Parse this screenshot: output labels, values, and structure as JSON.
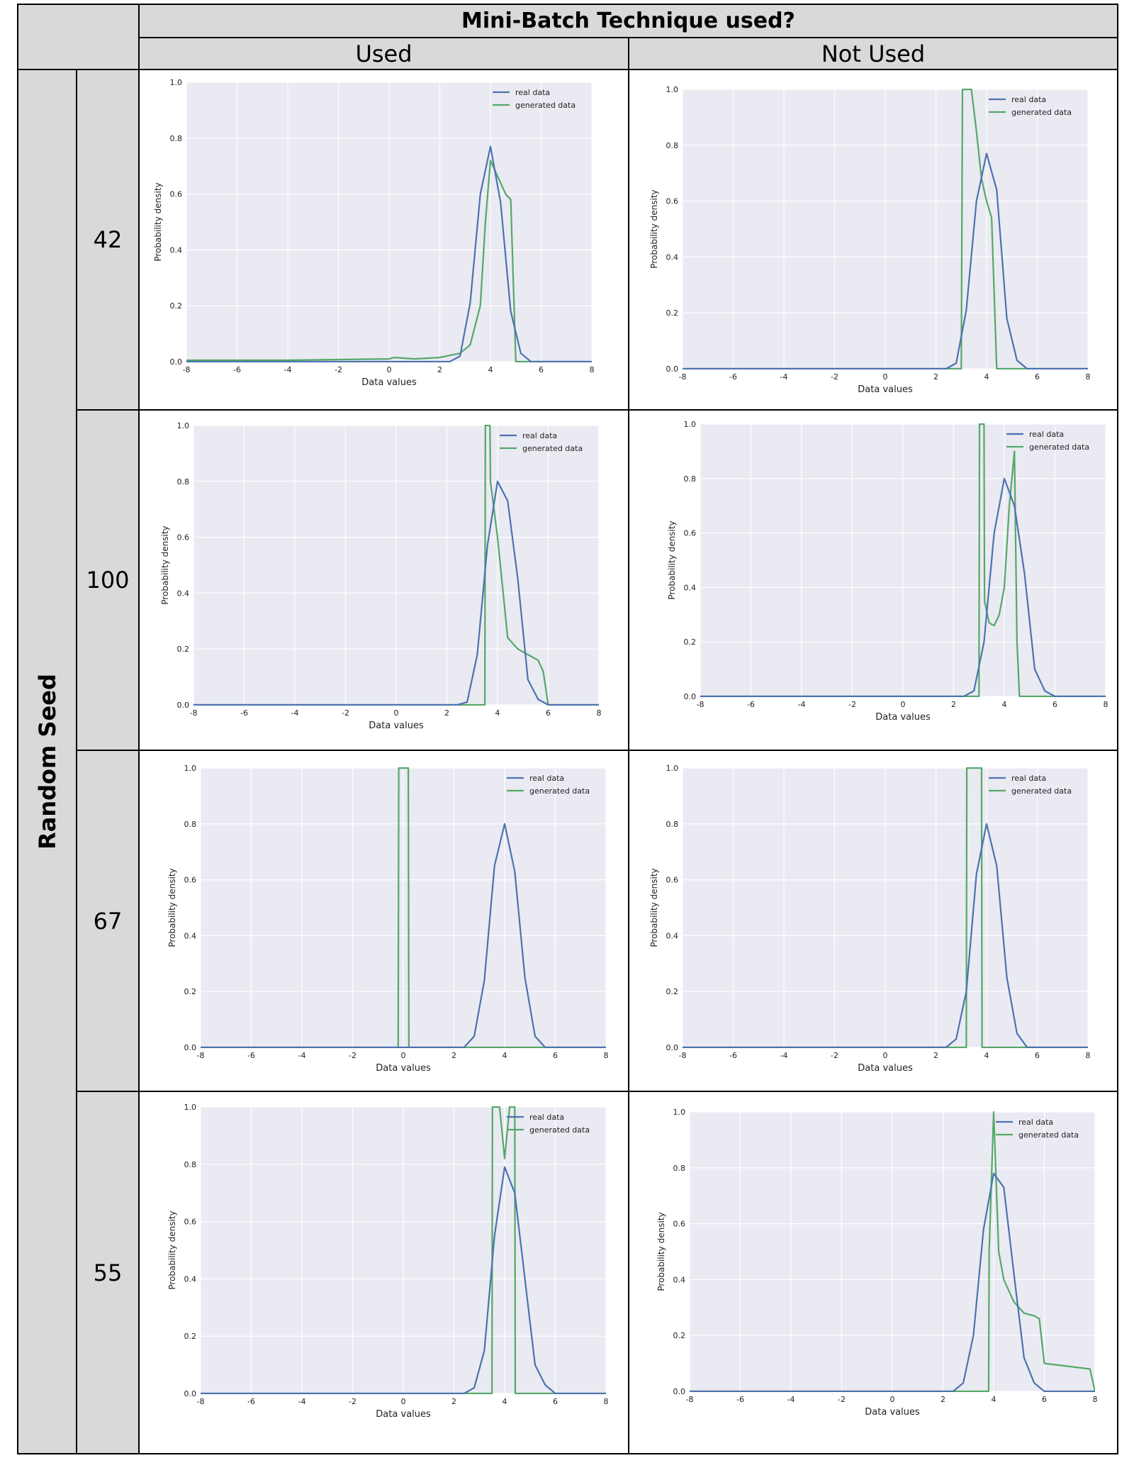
{
  "header": {
    "title": "Mini-Batch Technique used?",
    "col_used": "Used",
    "col_not_used": "Not Used"
  },
  "side_label": "Random Seed",
  "seeds": [
    "42",
    "100",
    "67",
    "55"
  ],
  "colors": {
    "real": "#4c72b0",
    "generated": "#55a868",
    "plot_bg": "#eaeaf2",
    "header_bg": "#d9d9d9"
  },
  "chart_data": [
    {
      "type": "line",
      "seed": "42",
      "minibatch": "Used",
      "xlabel": "Data values",
      "ylabel": "Probability density",
      "xlim": [
        -8,
        8
      ],
      "ylim": [
        0,
        1.0
      ],
      "xticks": [
        -8,
        -6,
        -4,
        -2,
        0,
        2,
        4,
        6,
        8
      ],
      "yticks": [
        0.0,
        0.2,
        0.4,
        0.6,
        0.8,
        1.0
      ],
      "legend": "top-right",
      "series": [
        {
          "name": "real data",
          "x": [
            -8,
            2.4,
            2.8,
            3.2,
            3.6,
            4.0,
            4.4,
            4.8,
            5.2,
            5.6,
            6.0,
            8
          ],
          "y": [
            0,
            0.0,
            0.02,
            0.21,
            0.6,
            0.77,
            0.57,
            0.18,
            0.03,
            0.0,
            0.0,
            0
          ]
        },
        {
          "name": "generated data",
          "x": [
            -8,
            -4,
            0,
            0.2,
            1,
            2,
            2.8,
            3.2,
            3.6,
            3.8,
            4.0,
            4.4,
            4.6,
            4.8,
            5.0,
            8
          ],
          "y": [
            0.005,
            0.005,
            0.01,
            0.015,
            0.01,
            0.015,
            0.03,
            0.06,
            0.2,
            0.5,
            0.72,
            0.64,
            0.6,
            0.58,
            0.0,
            0
          ]
        }
      ]
    },
    {
      "type": "line",
      "seed": "42",
      "minibatch": "Not Used",
      "xlabel": "Data values",
      "ylabel": "Probability density",
      "xlim": [
        -8,
        8
      ],
      "ylim": [
        0,
        1.0
      ],
      "xticks": [
        -8,
        -6,
        -4,
        -2,
        0,
        2,
        4,
        6,
        8
      ],
      "yticks": [
        0.0,
        0.2,
        0.4,
        0.6,
        0.8,
        1.0
      ],
      "legend": "top-right",
      "series": [
        {
          "name": "real data",
          "x": [
            -8,
            2.4,
            2.8,
            3.2,
            3.6,
            4.0,
            4.4,
            4.8,
            5.2,
            5.6,
            6.0,
            8
          ],
          "y": [
            0,
            0.0,
            0.02,
            0.21,
            0.6,
            0.77,
            0.64,
            0.18,
            0.03,
            0.0,
            0.0,
            0
          ]
        },
        {
          "name": "generated data",
          "x": [
            -8,
            3.0,
            3.05,
            3.4,
            3.6,
            3.8,
            4.0,
            4.2,
            4.4,
            8
          ],
          "y": [
            0,
            0,
            1.0,
            1.0,
            0.85,
            0.68,
            0.6,
            0.54,
            0.0,
            0
          ]
        }
      ]
    },
    {
      "type": "line",
      "seed": "100",
      "minibatch": "Used",
      "xlabel": "Data values",
      "ylabel": "Probability density",
      "xlim": [
        -8,
        8
      ],
      "ylim": [
        0,
        1.0
      ],
      "xticks": [
        -8,
        -6,
        -4,
        -2,
        0,
        2,
        4,
        6,
        8
      ],
      "yticks": [
        0.0,
        0.2,
        0.4,
        0.6,
        0.8,
        1.0
      ],
      "legend": "top-right",
      "series": [
        {
          "name": "real data",
          "x": [
            -8,
            2.4,
            2.8,
            3.2,
            3.6,
            4.0,
            4.4,
            4.8,
            5.2,
            5.6,
            6.0,
            8
          ],
          "y": [
            0,
            0.0,
            0.01,
            0.18,
            0.57,
            0.8,
            0.73,
            0.45,
            0.09,
            0.02,
            0.0,
            0
          ]
        },
        {
          "name": "generated data",
          "x": [
            -8,
            3.5,
            3.52,
            3.7,
            3.72,
            4.0,
            4.4,
            4.8,
            5.2,
            5.6,
            5.8,
            6.0,
            8
          ],
          "y": [
            0,
            0,
            1.0,
            1.0,
            0.8,
            0.6,
            0.24,
            0.2,
            0.18,
            0.16,
            0.12,
            0.0,
            0
          ]
        }
      ]
    },
    {
      "type": "line",
      "seed": "100",
      "minibatch": "Not Used",
      "xlabel": "Data values",
      "ylabel": "Probability density",
      "xlim": [
        -8,
        8
      ],
      "ylim": [
        0,
        1.0
      ],
      "xticks": [
        -8,
        -6,
        -4,
        -2,
        0,
        2,
        4,
        6,
        8
      ],
      "yticks": [
        0.0,
        0.2,
        0.4,
        0.6,
        0.8,
        1.0
      ],
      "legend": "top-right",
      "series": [
        {
          "name": "real data",
          "x": [
            -8,
            2.4,
            2.8,
            3.2,
            3.6,
            4.0,
            4.4,
            4.8,
            5.2,
            5.6,
            6.0,
            8
          ],
          "y": [
            0,
            0.0,
            0.02,
            0.2,
            0.6,
            0.8,
            0.7,
            0.45,
            0.1,
            0.02,
            0.0,
            0
          ]
        },
        {
          "name": "generated data",
          "x": [
            -8,
            3.0,
            3.02,
            3.2,
            3.22,
            3.4,
            3.6,
            3.8,
            4.0,
            4.2,
            4.4,
            4.5,
            4.6,
            8
          ],
          "y": [
            0,
            0,
            1.0,
            1.0,
            0.35,
            0.27,
            0.26,
            0.3,
            0.4,
            0.7,
            0.9,
            0.2,
            0.0,
            0
          ]
        }
      ]
    },
    {
      "type": "line",
      "seed": "67",
      "minibatch": "Used",
      "xlabel": "Data values",
      "ylabel": "Probability density",
      "xlim": [
        -8,
        8
      ],
      "ylim": [
        0,
        1.0
      ],
      "xticks": [
        -8,
        -6,
        -4,
        -2,
        0,
        2,
        4,
        6,
        8
      ],
      "yticks": [
        0.0,
        0.2,
        0.4,
        0.6,
        0.8,
        1.0
      ],
      "legend": "top-right",
      "series": [
        {
          "name": "real data",
          "x": [
            -8,
            2.4,
            2.8,
            3.2,
            3.6,
            4.0,
            4.4,
            4.8,
            5.2,
            5.6,
            6.0,
            8
          ],
          "y": [
            0,
            0.0,
            0.04,
            0.24,
            0.65,
            0.8,
            0.63,
            0.25,
            0.04,
            0.0,
            0.0,
            0
          ]
        },
        {
          "name": "generated data",
          "x": [
            -8,
            -0.2,
            -0.18,
            0.2,
            0.22,
            8
          ],
          "y": [
            0,
            0,
            1.0,
            1.0,
            0,
            0
          ]
        }
      ]
    },
    {
      "type": "line",
      "seed": "67",
      "minibatch": "Not Used",
      "xlabel": "Data values",
      "ylabel": "Probability density",
      "xlim": [
        -8,
        8
      ],
      "ylim": [
        0,
        1.0
      ],
      "xticks": [
        -8,
        -6,
        -4,
        -2,
        0,
        2,
        4,
        6,
        8
      ],
      "yticks": [
        0.0,
        0.2,
        0.4,
        0.6,
        0.8,
        1.0
      ],
      "legend": "top-right",
      "series": [
        {
          "name": "real data",
          "x": [
            -8,
            2.4,
            2.8,
            3.2,
            3.6,
            4.0,
            4.4,
            4.8,
            5.2,
            5.6,
            6.0,
            8
          ],
          "y": [
            0,
            0.0,
            0.03,
            0.2,
            0.62,
            0.8,
            0.65,
            0.25,
            0.05,
            0.0,
            0.0,
            0
          ]
        },
        {
          "name": "generated data",
          "x": [
            -8,
            3.2,
            3.22,
            3.8,
            3.82,
            8
          ],
          "y": [
            0,
            0,
            1.0,
            1.0,
            0,
            0
          ]
        }
      ]
    },
    {
      "type": "line",
      "seed": "55",
      "minibatch": "Used",
      "xlabel": "Data values",
      "ylabel": "Probability density",
      "xlim": [
        -8,
        8
      ],
      "ylim": [
        0,
        1.0
      ],
      "xticks": [
        -8,
        -6,
        -4,
        -2,
        0,
        2,
        4,
        6,
        8
      ],
      "yticks": [
        0.0,
        0.2,
        0.4,
        0.6,
        0.8,
        1.0
      ],
      "legend": "top-right",
      "series": [
        {
          "name": "real data",
          "x": [
            -8,
            2.4,
            2.8,
            3.2,
            3.6,
            4.0,
            4.4,
            4.8,
            5.2,
            5.6,
            6.0,
            8
          ],
          "y": [
            0,
            0.0,
            0.02,
            0.15,
            0.55,
            0.79,
            0.7,
            0.4,
            0.1,
            0.03,
            0.0,
            0
          ]
        },
        {
          "name": "generated data",
          "x": [
            -8,
            3.5,
            3.52,
            3.8,
            4.0,
            4.2,
            4.4,
            4.42,
            8
          ],
          "y": [
            0,
            0,
            1.0,
            1.0,
            0.82,
            1.0,
            1.0,
            0,
            0
          ]
        }
      ]
    },
    {
      "type": "line",
      "seed": "55",
      "minibatch": "Not Used",
      "xlabel": "Data values",
      "ylabel": "Probability density",
      "xlim": [
        -8,
        8
      ],
      "ylim": [
        0,
        1.0
      ],
      "xticks": [
        -8,
        -6,
        -4,
        -2,
        0,
        2,
        4,
        6,
        8
      ],
      "yticks": [
        0.0,
        0.2,
        0.4,
        0.6,
        0.8,
        1.0
      ],
      "legend": "top-right",
      "series": [
        {
          "name": "real data",
          "x": [
            -8,
            2.4,
            2.8,
            3.2,
            3.6,
            4.0,
            4.4,
            4.8,
            5.2,
            5.6,
            6.0,
            8
          ],
          "y": [
            0,
            0.0,
            0.03,
            0.2,
            0.58,
            0.78,
            0.73,
            0.42,
            0.12,
            0.03,
            0.0,
            0
          ]
        },
        {
          "name": "generated data",
          "x": [
            -8,
            3.8,
            3.82,
            4.0,
            4.2,
            4.4,
            4.8,
            5.2,
            5.6,
            5.8,
            6.0,
            7.8,
            8.0
          ],
          "y": [
            0,
            0,
            0.5,
            1.0,
            0.5,
            0.4,
            0.32,
            0.28,
            0.27,
            0.26,
            0.1,
            0.08,
            0.0
          ]
        }
      ]
    }
  ]
}
